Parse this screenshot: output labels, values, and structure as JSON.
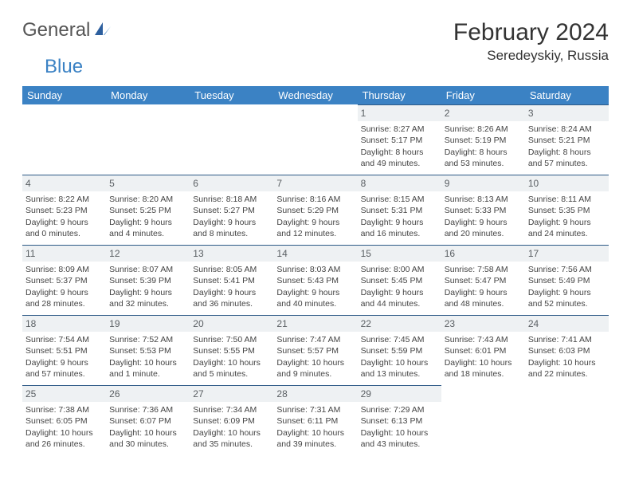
{
  "logo": {
    "general": "General",
    "blue": "Blue"
  },
  "title": {
    "month_year": "February 2024",
    "location": "Seredeyskiy, Russia"
  },
  "colors": {
    "header_bg": "#3b82c4",
    "header_text": "#ffffff",
    "cell_bg": "#eef1f3",
    "cell_border": "#2e5a87",
    "text": "#444444",
    "logo_gray": "#555555",
    "logo_blue": "#3b82c4"
  },
  "weekdays": [
    "Sunday",
    "Monday",
    "Tuesday",
    "Wednesday",
    "Thursday",
    "Friday",
    "Saturday"
  ],
  "days": {
    "1": {
      "sunrise": "8:27 AM",
      "sunset": "5:17 PM",
      "daylight": "8 hours and 49 minutes."
    },
    "2": {
      "sunrise": "8:26 AM",
      "sunset": "5:19 PM",
      "daylight": "8 hours and 53 minutes."
    },
    "3": {
      "sunrise": "8:24 AM",
      "sunset": "5:21 PM",
      "daylight": "8 hours and 57 minutes."
    },
    "4": {
      "sunrise": "8:22 AM",
      "sunset": "5:23 PM",
      "daylight": "9 hours and 0 minutes."
    },
    "5": {
      "sunrise": "8:20 AM",
      "sunset": "5:25 PM",
      "daylight": "9 hours and 4 minutes."
    },
    "6": {
      "sunrise": "8:18 AM",
      "sunset": "5:27 PM",
      "daylight": "9 hours and 8 minutes."
    },
    "7": {
      "sunrise": "8:16 AM",
      "sunset": "5:29 PM",
      "daylight": "9 hours and 12 minutes."
    },
    "8": {
      "sunrise": "8:15 AM",
      "sunset": "5:31 PM",
      "daylight": "9 hours and 16 minutes."
    },
    "9": {
      "sunrise": "8:13 AM",
      "sunset": "5:33 PM",
      "daylight": "9 hours and 20 minutes."
    },
    "10": {
      "sunrise": "8:11 AM",
      "sunset": "5:35 PM",
      "daylight": "9 hours and 24 minutes."
    },
    "11": {
      "sunrise": "8:09 AM",
      "sunset": "5:37 PM",
      "daylight": "9 hours and 28 minutes."
    },
    "12": {
      "sunrise": "8:07 AM",
      "sunset": "5:39 PM",
      "daylight": "9 hours and 32 minutes."
    },
    "13": {
      "sunrise": "8:05 AM",
      "sunset": "5:41 PM",
      "daylight": "9 hours and 36 minutes."
    },
    "14": {
      "sunrise": "8:03 AM",
      "sunset": "5:43 PM",
      "daylight": "9 hours and 40 minutes."
    },
    "15": {
      "sunrise": "8:00 AM",
      "sunset": "5:45 PM",
      "daylight": "9 hours and 44 minutes."
    },
    "16": {
      "sunrise": "7:58 AM",
      "sunset": "5:47 PM",
      "daylight": "9 hours and 48 minutes."
    },
    "17": {
      "sunrise": "7:56 AM",
      "sunset": "5:49 PM",
      "daylight": "9 hours and 52 minutes."
    },
    "18": {
      "sunrise": "7:54 AM",
      "sunset": "5:51 PM",
      "daylight": "9 hours and 57 minutes."
    },
    "19": {
      "sunrise": "7:52 AM",
      "sunset": "5:53 PM",
      "daylight": "10 hours and 1 minute."
    },
    "20": {
      "sunrise": "7:50 AM",
      "sunset": "5:55 PM",
      "daylight": "10 hours and 5 minutes."
    },
    "21": {
      "sunrise": "7:47 AM",
      "sunset": "5:57 PM",
      "daylight": "10 hours and 9 minutes."
    },
    "22": {
      "sunrise": "7:45 AM",
      "sunset": "5:59 PM",
      "daylight": "10 hours and 13 minutes."
    },
    "23": {
      "sunrise": "7:43 AM",
      "sunset": "6:01 PM",
      "daylight": "10 hours and 18 minutes."
    },
    "24": {
      "sunrise": "7:41 AM",
      "sunset": "6:03 PM",
      "daylight": "10 hours and 22 minutes."
    },
    "25": {
      "sunrise": "7:38 AM",
      "sunset": "6:05 PM",
      "daylight": "10 hours and 26 minutes."
    },
    "26": {
      "sunrise": "7:36 AM",
      "sunset": "6:07 PM",
      "daylight": "10 hours and 30 minutes."
    },
    "27": {
      "sunrise": "7:34 AM",
      "sunset": "6:09 PM",
      "daylight": "10 hours and 35 minutes."
    },
    "28": {
      "sunrise": "7:31 AM",
      "sunset": "6:11 PM",
      "daylight": "10 hours and 39 minutes."
    },
    "29": {
      "sunrise": "7:29 AM",
      "sunset": "6:13 PM",
      "daylight": "10 hours and 43 minutes."
    }
  },
  "layout": {
    "first_weekday_index": 4,
    "num_days": 29,
    "labels": {
      "sunrise": "Sunrise: ",
      "sunset": "Sunset: ",
      "daylight": "Daylight: "
    }
  }
}
